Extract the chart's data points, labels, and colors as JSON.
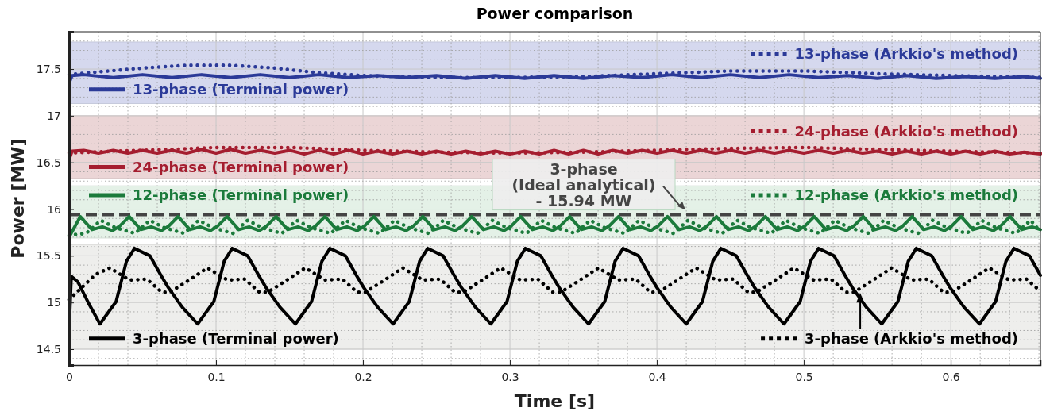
{
  "chart_data": {
    "type": "line",
    "title": "Power comparison",
    "xlabel": "Time [s]",
    "ylabel": "Power [MW]",
    "xlim": [
      0,
      0.661
    ],
    "ylim": [
      14.33,
      17.9
    ],
    "xticks": [
      0,
      0.1,
      0.2,
      0.3,
      0.4,
      0.5,
      0.6
    ],
    "yticks": [
      14.5,
      15,
      15.5,
      16,
      16.5,
      17,
      17.5
    ],
    "grid": true,
    "marker": "none",
    "legend": "top right",
    "bands": [
      {
        "axis": "y",
        "from": 17.13,
        "to": 17.79,
        "color": "#d5d8ee"
      },
      {
        "axis": "y",
        "from": 16.33,
        "to": 17.0,
        "color": "#ebd5d6"
      },
      {
        "axis": "y",
        "from": 15.69,
        "to": 16.25,
        "color": "#e4f1e7"
      },
      {
        "axis": "y",
        "from": 14.5,
        "to": 15.62,
        "color": "#eeeeec"
      }
    ],
    "ref_lines": [
      {
        "axis": "y",
        "value": 15.94,
        "label": "3-phase\n(Ideal analytical)\n- 15.94 MW",
        "color": "#444444",
        "line_style": "dashed"
      }
    ],
    "series": [
      {
        "name": "13-phase (Terminal power)",
        "color": "#2b3a98",
        "line_style": "solid",
        "x": [
          0,
          0.002,
          0.01,
          0.03,
          0.05,
          0.07,
          0.09,
          0.11,
          0.13,
          0.15,
          0.17,
          0.19,
          0.21,
          0.23,
          0.25,
          0.27,
          0.29,
          0.31,
          0.33,
          0.35,
          0.37,
          0.39,
          0.41,
          0.43,
          0.45,
          0.47,
          0.49,
          0.51,
          0.53,
          0.55,
          0.57,
          0.59,
          0.61,
          0.63,
          0.65,
          0.661
        ],
        "values": [
          17.35,
          17.43,
          17.44,
          17.41,
          17.44,
          17.41,
          17.44,
          17.41,
          17.44,
          17.41,
          17.44,
          17.41,
          17.43,
          17.41,
          17.43,
          17.4,
          17.43,
          17.4,
          17.43,
          17.4,
          17.43,
          17.41,
          17.44,
          17.41,
          17.44,
          17.41,
          17.44,
          17.41,
          17.43,
          17.4,
          17.43,
          17.4,
          17.42,
          17.4,
          17.42,
          17.4
        ]
      },
      {
        "name": "13-phase (Arkkio's method)",
        "color": "#2b3a98",
        "line_style": "dotted",
        "x": [
          0,
          0.02,
          0.05,
          0.08,
          0.11,
          0.14,
          0.17,
          0.2,
          0.25,
          0.3,
          0.35,
          0.4,
          0.45,
          0.5,
          0.55,
          0.6,
          0.661
        ],
        "values": [
          17.44,
          17.47,
          17.51,
          17.54,
          17.54,
          17.51,
          17.46,
          17.43,
          17.41,
          17.41,
          17.42,
          17.45,
          17.48,
          17.48,
          17.45,
          17.43,
          17.41
        ]
      },
      {
        "name": "24-phase (Terminal power)",
        "color": "#a51d2f",
        "line_style": "solid",
        "x": [
          0,
          0.002,
          0.01,
          0.02,
          0.03,
          0.04,
          0.05,
          0.06,
          0.07,
          0.08,
          0.09,
          0.1,
          0.11,
          0.12,
          0.13,
          0.14,
          0.15,
          0.16,
          0.17,
          0.18,
          0.19,
          0.2,
          0.21,
          0.22,
          0.23,
          0.24,
          0.25,
          0.26,
          0.27,
          0.28,
          0.29,
          0.3,
          0.31,
          0.32,
          0.33,
          0.34,
          0.35,
          0.36,
          0.37,
          0.38,
          0.39,
          0.4,
          0.41,
          0.42,
          0.43,
          0.44,
          0.45,
          0.46,
          0.47,
          0.48,
          0.49,
          0.5,
          0.51,
          0.52,
          0.53,
          0.54,
          0.55,
          0.56,
          0.57,
          0.58,
          0.59,
          0.6,
          0.61,
          0.62,
          0.63,
          0.64,
          0.65,
          0.661
        ],
        "values": [
          16.53,
          16.62,
          16.63,
          16.6,
          16.63,
          16.6,
          16.63,
          16.6,
          16.63,
          16.6,
          16.64,
          16.6,
          16.64,
          16.6,
          16.63,
          16.6,
          16.63,
          16.59,
          16.63,
          16.59,
          16.63,
          16.59,
          16.62,
          16.59,
          16.62,
          16.59,
          16.62,
          16.59,
          16.62,
          16.59,
          16.62,
          16.59,
          16.62,
          16.59,
          16.63,
          16.59,
          16.63,
          16.59,
          16.63,
          16.6,
          16.63,
          16.6,
          16.63,
          16.6,
          16.63,
          16.6,
          16.63,
          16.6,
          16.63,
          16.6,
          16.63,
          16.6,
          16.63,
          16.6,
          16.63,
          16.6,
          16.62,
          16.59,
          16.62,
          16.59,
          16.62,
          16.59,
          16.62,
          16.59,
          16.62,
          16.59,
          16.61,
          16.59
        ]
      },
      {
        "name": "24-phase (Arkkio's method)",
        "color": "#a51d2f",
        "line_style": "dotted",
        "x": [
          0,
          0.03,
          0.07,
          0.1,
          0.15,
          0.2,
          0.25,
          0.3,
          0.35,
          0.4,
          0.45,
          0.5,
          0.55,
          0.6,
          0.661
        ],
        "values": [
          16.6,
          16.62,
          16.64,
          16.66,
          16.66,
          16.63,
          16.61,
          16.6,
          16.61,
          16.63,
          16.65,
          16.66,
          16.64,
          16.62,
          16.6
        ]
      },
      {
        "name": "12-phase (Terminal power)",
        "color": "#1b7a3b",
        "line_style": "solid",
        "x": [
          0,
          0.0076,
          0.0156,
          0.0226,
          0.0296,
          0.0346,
          0.0409,
          0.0489,
          0.0559,
          0.0629,
          0.0679,
          0.0742,
          0.0822,
          0.0892,
          0.0962,
          0.1012,
          0.1075,
          0.1155,
          0.1225,
          0.1295,
          0.1345,
          0.1408,
          0.1488,
          0.1558,
          0.1628,
          0.1678,
          0.1741,
          0.1821,
          0.1891,
          0.1961,
          0.2011,
          0.2074,
          0.2154,
          0.2224,
          0.2294,
          0.2344,
          0.2407,
          0.2487,
          0.2557,
          0.2627,
          0.2677,
          0.274,
          0.282,
          0.289,
          0.296,
          0.301,
          0.3073,
          0.3153,
          0.3223,
          0.3293,
          0.3343,
          0.3406,
          0.3486,
          0.3556,
          0.3626,
          0.3676,
          0.3739,
          0.3819,
          0.3889,
          0.3959,
          0.4009,
          0.4072,
          0.4152,
          0.4222,
          0.4292,
          0.4342,
          0.4405,
          0.4485,
          0.4555,
          0.4625,
          0.4675,
          0.4738,
          0.4818,
          0.4888,
          0.4958,
          0.5008,
          0.5071,
          0.5151,
          0.5221,
          0.5291,
          0.5341,
          0.5404,
          0.5484,
          0.5554,
          0.5624,
          0.5674,
          0.5737,
          0.5817,
          0.5887,
          0.5957,
          0.6007,
          0.607,
          0.615,
          0.622,
          0.629,
          0.634,
          0.6403,
          0.6483,
          0.6553,
          0.661
        ],
        "values": [
          15.7,
          15.92,
          15.78,
          15.81,
          15.77,
          15.82,
          15.92,
          15.78,
          15.81,
          15.77,
          15.82,
          15.92,
          15.78,
          15.81,
          15.77,
          15.82,
          15.92,
          15.78,
          15.81,
          15.77,
          15.82,
          15.92,
          15.78,
          15.81,
          15.77,
          15.82,
          15.92,
          15.78,
          15.81,
          15.77,
          15.82,
          15.92,
          15.78,
          15.81,
          15.77,
          15.82,
          15.92,
          15.78,
          15.81,
          15.77,
          15.82,
          15.92,
          15.78,
          15.81,
          15.77,
          15.82,
          15.92,
          15.78,
          15.81,
          15.77,
          15.82,
          15.92,
          15.78,
          15.81,
          15.77,
          15.82,
          15.92,
          15.78,
          15.81,
          15.77,
          15.82,
          15.92,
          15.78,
          15.81,
          15.77,
          15.82,
          15.92,
          15.78,
          15.81,
          15.77,
          15.82,
          15.92,
          15.78,
          15.81,
          15.77,
          15.82,
          15.92,
          15.78,
          15.81,
          15.77,
          15.82,
          15.92,
          15.78,
          15.81,
          15.77,
          15.82,
          15.92,
          15.78,
          15.81,
          15.77,
          15.82,
          15.92,
          15.78,
          15.81,
          15.77,
          15.82,
          15.92,
          15.78,
          15.81,
          15.78
        ]
      },
      {
        "name": "12-phase (Arkkio's method)",
        "color": "#1b7a3b",
        "line_style": "dotted",
        "x": [
          0,
          0.0116,
          0.0216,
          0.0316,
          0.0449,
          0.0549,
          0.0649,
          0.0782,
          0.0882,
          0.0982,
          0.1115,
          0.1215,
          0.1315,
          0.1448,
          0.1548,
          0.1648,
          0.1781,
          0.1881,
          0.1981,
          0.2114,
          0.2214,
          0.2314,
          0.2447,
          0.2547,
          0.2647,
          0.278,
          0.288,
          0.298,
          0.3113,
          0.3213,
          0.3313,
          0.3446,
          0.3546,
          0.3646,
          0.3779,
          0.3879,
          0.3979,
          0.4112,
          0.4212,
          0.4312,
          0.4445,
          0.4545,
          0.4645,
          0.4778,
          0.4878,
          0.4978,
          0.5111,
          0.5211,
          0.5311,
          0.5444,
          0.5544,
          0.5644,
          0.5777,
          0.5877,
          0.5977,
          0.611,
          0.621,
          0.631,
          0.6443,
          0.6543,
          0.661
        ],
        "values": [
          15.72,
          15.74,
          15.88,
          15.8,
          15.74,
          15.88,
          15.8,
          15.74,
          15.88,
          15.8,
          15.74,
          15.88,
          15.8,
          15.74,
          15.88,
          15.8,
          15.74,
          15.88,
          15.8,
          15.74,
          15.88,
          15.8,
          15.74,
          15.88,
          15.8,
          15.74,
          15.88,
          15.8,
          15.74,
          15.88,
          15.8,
          15.74,
          15.88,
          15.8,
          15.74,
          15.88,
          15.8,
          15.74,
          15.88,
          15.8,
          15.74,
          15.88,
          15.8,
          15.74,
          15.88,
          15.8,
          15.74,
          15.88,
          15.8,
          15.74,
          15.88,
          15.8,
          15.74,
          15.88,
          15.8,
          15.74,
          15.88,
          15.8,
          15.74,
          15.88,
          15.76
        ]
      },
      {
        "name": "3-phase (Terminal power)",
        "color": "#000000",
        "line_style": "solid",
        "x": [
          0,
          0.0015,
          0.006,
          0.013,
          0.021,
          0.032,
          0.039,
          0.0445,
          0.055,
          0.0625,
          0.0675,
          0.077,
          0.0875,
          0.0985,
          0.1055,
          0.111,
          0.1215,
          0.129,
          0.134,
          0.1435,
          0.154,
          0.165,
          0.172,
          0.1775,
          0.188,
          0.1955,
          0.2005,
          0.21,
          0.2205,
          0.2315,
          0.2385,
          0.244,
          0.2545,
          0.262,
          0.267,
          0.2765,
          0.287,
          0.298,
          0.305,
          0.3105,
          0.321,
          0.3285,
          0.3335,
          0.343,
          0.3535,
          0.3645,
          0.3715,
          0.377,
          0.3875,
          0.395,
          0.4,
          0.4095,
          0.42,
          0.431,
          0.438,
          0.4435,
          0.454,
          0.4615,
          0.4665,
          0.476,
          0.4865,
          0.4975,
          0.5045,
          0.51,
          0.5205,
          0.528,
          0.533,
          0.5425,
          0.553,
          0.564,
          0.571,
          0.5765,
          0.587,
          0.5945,
          0.5995,
          0.609,
          0.6195,
          0.6305,
          0.6375,
          0.643,
          0.6535,
          0.661
        ],
        "values": [
          14.7,
          15.28,
          15.22,
          15.0,
          14.77,
          15.01,
          15.44,
          15.58,
          15.5,
          15.29,
          15.16,
          14.95,
          14.77,
          15.01,
          15.44,
          15.58,
          15.5,
          15.29,
          15.16,
          14.95,
          14.77,
          15.01,
          15.44,
          15.58,
          15.5,
          15.29,
          15.16,
          14.95,
          14.77,
          15.01,
          15.44,
          15.58,
          15.5,
          15.29,
          15.16,
          14.95,
          14.77,
          15.01,
          15.44,
          15.58,
          15.5,
          15.29,
          15.16,
          14.95,
          14.77,
          15.01,
          15.44,
          15.58,
          15.5,
          15.29,
          15.16,
          14.95,
          14.77,
          15.01,
          15.44,
          15.58,
          15.5,
          15.29,
          15.16,
          14.95,
          14.77,
          15.01,
          15.44,
          15.58,
          15.5,
          15.29,
          15.16,
          14.95,
          14.77,
          15.01,
          15.44,
          15.58,
          15.5,
          15.29,
          15.16,
          14.95,
          14.77,
          15.01,
          15.44,
          15.58,
          15.5,
          15.29
        ]
      },
      {
        "name": "3-phase (Arkkio's method)",
        "color": "#000000",
        "line_style": "dotted",
        "x": [
          0,
          0.01,
          0.018,
          0.0277,
          0.0412,
          0.053,
          0.063,
          0.0687,
          0.0797,
          0.0942,
          0.1077,
          0.1195,
          0.1295,
          0.1352,
          0.1462,
          0.1607,
          0.1742,
          0.186,
          0.196,
          0.2017,
          0.2127,
          0.2272,
          0.2407,
          0.2525,
          0.2625,
          0.2682,
          0.2792,
          0.2937,
          0.3072,
          0.319,
          0.329,
          0.3347,
          0.3457,
          0.3602,
          0.3737,
          0.3855,
          0.3955,
          0.4012,
          0.4122,
          0.4267,
          0.4402,
          0.452,
          0.462,
          0.4677,
          0.4787,
          0.4932,
          0.5067,
          0.5185,
          0.5285,
          0.5342,
          0.5452,
          0.5597,
          0.5732,
          0.585,
          0.595,
          0.6007,
          0.6117,
          0.6262,
          0.6397,
          0.6515,
          0.661
        ],
        "values": [
          15.03,
          15.18,
          15.3,
          15.37,
          15.24,
          15.25,
          15.11,
          15.11,
          15.22,
          15.37,
          15.24,
          15.25,
          15.11,
          15.11,
          15.22,
          15.37,
          15.24,
          15.25,
          15.11,
          15.11,
          15.22,
          15.37,
          15.24,
          15.25,
          15.11,
          15.11,
          15.22,
          15.37,
          15.24,
          15.25,
          15.11,
          15.11,
          15.22,
          15.37,
          15.24,
          15.25,
          15.11,
          15.11,
          15.22,
          15.37,
          15.24,
          15.25,
          15.11,
          15.11,
          15.22,
          15.37,
          15.24,
          15.25,
          15.11,
          15.11,
          15.22,
          15.37,
          15.24,
          15.25,
          15.11,
          15.11,
          15.22,
          15.37,
          15.24,
          15.25,
          15.12
        ]
      }
    ]
  }
}
